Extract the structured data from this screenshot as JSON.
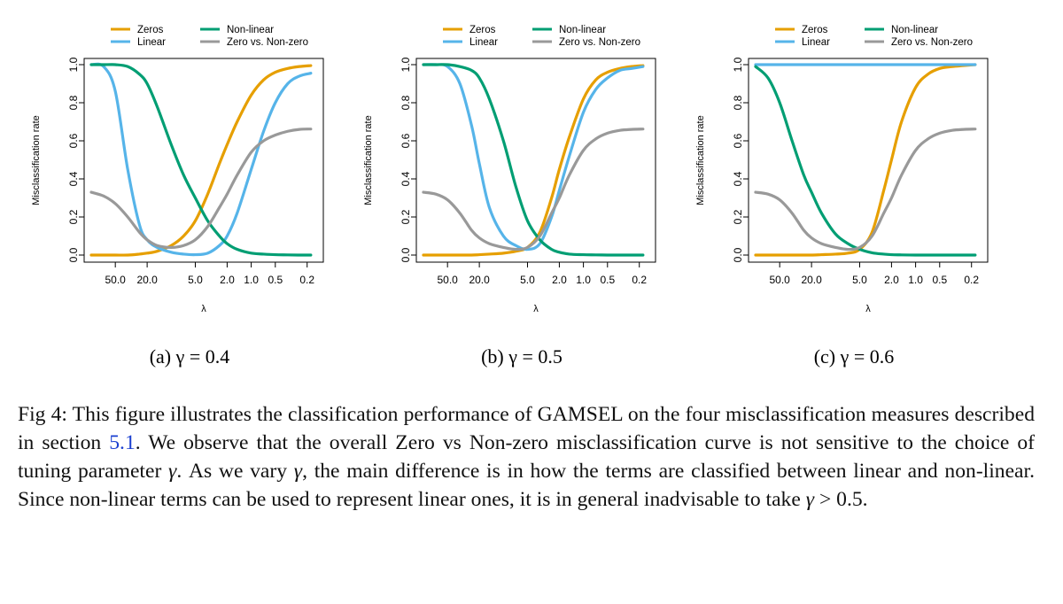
{
  "figure": {
    "caption": {
      "label": "Fig 4:",
      "part1": "This figure illustrates the classification performance of GAMSEL on the four misclassification measures described in section",
      "ref": "5.1",
      "part2": ". We observe that the overall Zero vs Non-zero misclassification curve is not sensitive to the choice of tuning parameter",
      "gamma_symbol": "γ",
      "part3": ". As we vary",
      "part4": ", the main difference is in how the terms are classified between linear and non-linear. Since non-linear terms can be used to represent linear ones, it is in general inadvisable to take",
      "part5": "> 0.5."
    }
  },
  "chart_data": [
    {
      "type": "line",
      "subcaption": "(a) γ = 0.4",
      "xlabel": "λ",
      "ylabel": "Misclassification rate",
      "x_scale": "log, reversed",
      "xlim": [
        100,
        0.15
      ],
      "ylim": [
        0,
        1
      ],
      "xticks": [
        50.0,
        20.0,
        5.0,
        2.0,
        1.0,
        0.5,
        0.2
      ],
      "xtick_labels": [
        "50.0",
        "20.0",
        "5.0",
        "2.0",
        "1.0",
        "0.5",
        "0.2"
      ],
      "yticks": [
        0.0,
        0.2,
        0.4,
        0.6,
        0.8,
        1.0
      ],
      "ytick_labels": [
        "0.0",
        "0.2",
        "0.4",
        "0.6",
        "0.8",
        "1.0"
      ],
      "legend": [
        "Zeros",
        "Linear",
        "Non-linear",
        "Zero vs. Non-zero"
      ],
      "legend_position": "top",
      "x": [
        100,
        70,
        50,
        35,
        25,
        20,
        15,
        10,
        7,
        5,
        3.5,
        2.5,
        2,
        1.5,
        1,
        0.7,
        0.5,
        0.35,
        0.25,
        0.18
      ],
      "series": [
        {
          "name": "Zeros",
          "color": "#E69F00",
          "values": [
            0.0,
            0.0,
            0.0,
            0.0,
            0.005,
            0.01,
            0.02,
            0.05,
            0.1,
            0.18,
            0.32,
            0.48,
            0.58,
            0.7,
            0.84,
            0.92,
            0.96,
            0.98,
            0.99,
            0.995
          ]
        },
        {
          "name": "Linear",
          "color": "#56B4E9",
          "values": [
            1.0,
            0.99,
            0.86,
            0.45,
            0.16,
            0.08,
            0.04,
            0.015,
            0.005,
            0.002,
            0.01,
            0.05,
            0.1,
            0.22,
            0.45,
            0.65,
            0.8,
            0.9,
            0.94,
            0.955
          ]
        },
        {
          "name": "Non-linear",
          "color": "#009E73",
          "values": [
            1.0,
            1.0,
            1.0,
            0.99,
            0.95,
            0.9,
            0.78,
            0.58,
            0.42,
            0.3,
            0.18,
            0.1,
            0.06,
            0.03,
            0.01,
            0.005,
            0.002,
            0.001,
            0.0,
            0.0
          ]
        },
        {
          "name": "Zero vs. Non-zero",
          "color": "#999999",
          "values": [
            0.33,
            0.31,
            0.27,
            0.2,
            0.12,
            0.08,
            0.05,
            0.04,
            0.05,
            0.08,
            0.15,
            0.25,
            0.32,
            0.42,
            0.54,
            0.6,
            0.63,
            0.65,
            0.66,
            0.662
          ]
        }
      ]
    },
    {
      "type": "line",
      "subcaption": "(b) γ = 0.5",
      "xlabel": "λ",
      "ylabel": "Misclassification rate",
      "x_scale": "log, reversed",
      "xlim": [
        100,
        0.15
      ],
      "ylim": [
        0,
        1
      ],
      "xticks": [
        50.0,
        20.0,
        5.0,
        2.0,
        1.0,
        0.5,
        0.2
      ],
      "xtick_labels": [
        "50.0",
        "20.0",
        "5.0",
        "2.0",
        "1.0",
        "0.5",
        "0.2"
      ],
      "yticks": [
        0.0,
        0.2,
        0.4,
        0.6,
        0.8,
        1.0
      ],
      "ytick_labels": [
        "0.0",
        "0.2",
        "0.4",
        "0.6",
        "0.8",
        "1.0"
      ],
      "legend": [
        "Zeros",
        "Linear",
        "Non-linear",
        "Zero vs. Non-zero"
      ],
      "legend_position": "top",
      "x": [
        100,
        70,
        50,
        35,
        25,
        20,
        15,
        10,
        7,
        5,
        3.5,
        2.5,
        2,
        1.5,
        1,
        0.7,
        0.5,
        0.35,
        0.25,
        0.18
      ],
      "series": [
        {
          "name": "Zeros",
          "color": "#E69F00",
          "values": [
            0.0,
            0.0,
            0.0,
            0.0,
            0.0,
            0.002,
            0.005,
            0.01,
            0.02,
            0.04,
            0.12,
            0.3,
            0.45,
            0.62,
            0.82,
            0.92,
            0.96,
            0.98,
            0.99,
            0.995
          ]
        },
        {
          "name": "Linear",
          "color": "#56B4E9",
          "values": [
            1.0,
            1.0,
            0.99,
            0.9,
            0.68,
            0.48,
            0.25,
            0.1,
            0.05,
            0.03,
            0.06,
            0.2,
            0.34,
            0.52,
            0.75,
            0.87,
            0.93,
            0.97,
            0.98,
            0.99
          ]
        },
        {
          "name": "Non-linear",
          "color": "#009E73",
          "values": [
            1.0,
            1.0,
            1.0,
            0.99,
            0.97,
            0.93,
            0.82,
            0.6,
            0.36,
            0.18,
            0.08,
            0.03,
            0.015,
            0.005,
            0.002,
            0.001,
            0.0,
            0.0,
            0.0,
            0.0
          ]
        },
        {
          "name": "Zero vs. Non-zero",
          "color": "#999999",
          "values": [
            0.33,
            0.32,
            0.29,
            0.22,
            0.13,
            0.09,
            0.06,
            0.04,
            0.03,
            0.04,
            0.1,
            0.22,
            0.3,
            0.42,
            0.55,
            0.61,
            0.64,
            0.655,
            0.66,
            0.662
          ]
        }
      ]
    },
    {
      "type": "line",
      "subcaption": "(c) γ = 0.6",
      "xlabel": "λ",
      "ylabel": "Misclassification rate",
      "x_scale": "log, reversed",
      "xlim": [
        100,
        0.15
      ],
      "ylim": [
        0,
        1
      ],
      "xticks": [
        50.0,
        20.0,
        5.0,
        2.0,
        1.0,
        0.5,
        0.2
      ],
      "xtick_labels": [
        "50.0",
        "20.0",
        "5.0",
        "2.0",
        "1.0",
        "0.5",
        "0.2"
      ],
      "yticks": [
        0.0,
        0.2,
        0.4,
        0.6,
        0.8,
        1.0
      ],
      "ytick_labels": [
        "0.0",
        "0.2",
        "0.4",
        "0.6",
        "0.8",
        "1.0"
      ],
      "legend": [
        "Zeros",
        "Linear",
        "Non-linear",
        "Zero vs. Non-zero"
      ],
      "legend_position": "top",
      "x": [
        100,
        70,
        50,
        35,
        25,
        20,
        15,
        10,
        7,
        5,
        3.5,
        2.5,
        2,
        1.5,
        1,
        0.7,
        0.5,
        0.35,
        0.25,
        0.18
      ],
      "series": [
        {
          "name": "Zeros",
          "color": "#E69F00",
          "values": [
            0.0,
            0.0,
            0.0,
            0.0,
            0.0,
            0.0,
            0.002,
            0.005,
            0.01,
            0.03,
            0.12,
            0.34,
            0.5,
            0.7,
            0.88,
            0.95,
            0.98,
            0.99,
            0.995,
            1.0
          ]
        },
        {
          "name": "Linear",
          "color": "#56B4E9",
          "values": [
            1.0,
            1.0,
            1.0,
            1.0,
            1.0,
            1.0,
            1.0,
            1.0,
            1.0,
            1.0,
            1.0,
            1.0,
            1.0,
            1.0,
            1.0,
            1.0,
            1.0,
            1.0,
            1.0,
            1.0
          ]
        },
        {
          "name": "Non-linear",
          "color": "#009E73",
          "values": [
            0.99,
            0.93,
            0.8,
            0.6,
            0.42,
            0.33,
            0.22,
            0.11,
            0.06,
            0.03,
            0.012,
            0.005,
            0.002,
            0.001,
            0.0,
            0.0,
            0.0,
            0.0,
            0.0,
            0.0
          ]
        },
        {
          "name": "Zero vs. Non-zero",
          "color": "#999999",
          "values": [
            0.33,
            0.32,
            0.29,
            0.22,
            0.13,
            0.09,
            0.06,
            0.04,
            0.03,
            0.04,
            0.1,
            0.22,
            0.3,
            0.42,
            0.55,
            0.61,
            0.64,
            0.655,
            0.66,
            0.662
          ]
        }
      ]
    }
  ]
}
